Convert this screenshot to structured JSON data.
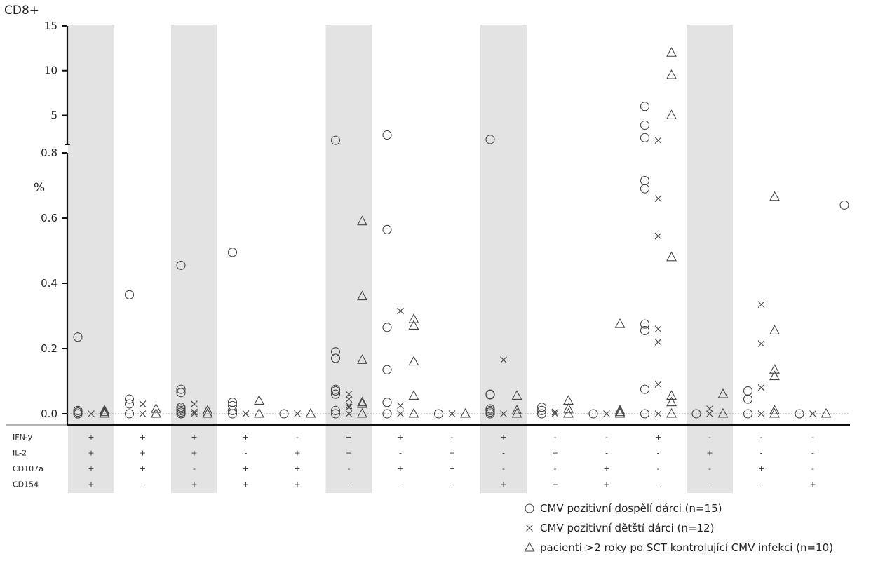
{
  "chart_data": {
    "type": "scatter",
    "title": "CD8+",
    "ylabel": "%",
    "y_axis_break": true,
    "ylim_lower": [
      0,
      0.8
    ],
    "ylim_upper": [
      0.8,
      15
    ],
    "upper_ticks": [
      "15",
      "10",
      "5"
    ],
    "lower_ticks": [
      "0.8",
      "0.6",
      "0.4",
      "0.2",
      "0.0"
    ],
    "upper_tick_values": [
      15,
      10,
      5
    ],
    "lower_tick_values": [
      0.8,
      0.6,
      0.4,
      0.2,
      0.0
    ],
    "shaded_groups": [
      1,
      3,
      6,
      9,
      13
    ],
    "row_labels": [
      "IFN-y",
      "IL-2",
      "CD107a",
      "CD154"
    ],
    "groups": [
      {
        "id": 1,
        "IFN-y": "+",
        "IL-2": "+",
        "CD107a": "+",
        "CD154": "+"
      },
      {
        "id": 2,
        "IFN-y": "+",
        "IL-2": "+",
        "CD107a": "+",
        "CD154": "-"
      },
      {
        "id": 3,
        "IFN-y": "+",
        "IL-2": "+",
        "CD107a": "-",
        "CD154": "+"
      },
      {
        "id": 4,
        "IFN-y": "+",
        "IL-2": "-",
        "CD107a": "+",
        "CD154": "+"
      },
      {
        "id": 5,
        "IFN-y": "-",
        "IL-2": "+",
        "CD107a": "+",
        "CD154": "+"
      },
      {
        "id": 6,
        "IFN-y": "+",
        "IL-2": "+",
        "CD107a": "-",
        "CD154": "-"
      },
      {
        "id": 7,
        "IFN-y": "+",
        "IL-2": "-",
        "CD107a": "+",
        "CD154": "-"
      },
      {
        "id": 8,
        "IFN-y": "-",
        "IL-2": "+",
        "CD107a": "+",
        "CD154": "-"
      },
      {
        "id": 9,
        "IFN-y": "+",
        "IL-2": "-",
        "CD107a": "-",
        "CD154": "+"
      },
      {
        "id": 10,
        "IFN-y": "-",
        "IL-2": "+",
        "CD107a": "-",
        "CD154": "+"
      },
      {
        "id": 11,
        "IFN-y": "-",
        "IL-2": "-",
        "CD107a": "+",
        "CD154": "+"
      },
      {
        "id": 12,
        "IFN-y": "+",
        "IL-2": "-",
        "CD107a": "-",
        "CD154": "-"
      },
      {
        "id": 13,
        "IFN-y": "-",
        "IL-2": "+",
        "CD107a": "-",
        "CD154": "-"
      },
      {
        "id": 14,
        "IFN-y": "-",
        "IL-2": "-",
        "CD107a": "+",
        "CD154": "-"
      },
      {
        "id": 15,
        "IFN-y": "-",
        "IL-2": "-",
        "CD107a": "-",
        "CD154": "+"
      }
    ],
    "series": [
      {
        "name": "CMV pozitivní dospělí dárci (n=15)",
        "marker": "circle",
        "points": [
          {
            "group": 1,
            "values": [
              0.235,
              0.01,
              0.005,
              0.0,
              0.0
            ]
          },
          {
            "group": 2,
            "values": [
              0.365,
              0.045,
              0.03,
              0.0
            ]
          },
          {
            "group": 3,
            "values": [
              0.455,
              0.075,
              0.065,
              0.02,
              0.015,
              0.01,
              0.005,
              0.0,
              0.0
            ]
          },
          {
            "group": 4,
            "values": [
              0.495,
              0.035,
              0.025,
              0.01,
              0.0
            ]
          },
          {
            "group": 5,
            "values": [
              0.0
            ]
          },
          {
            "group": 6,
            "values": [
              2.2,
              0.19,
              0.17,
              0.075,
              0.07,
              0.06,
              0.01,
              0.0
            ]
          },
          {
            "group": 7,
            "values": [
              2.8,
              0.565,
              0.265,
              0.135,
              0.035,
              0.0
            ]
          },
          {
            "group": 8,
            "values": [
              0.0
            ]
          },
          {
            "group": 9,
            "values": [
              2.3,
              0.06,
              0.058,
              0.015,
              0.01,
              0.005,
              0.0
            ]
          },
          {
            "group": 10,
            "values": [
              0.02,
              0.01,
              0.0
            ]
          },
          {
            "group": 11,
            "values": [
              0.0
            ]
          },
          {
            "group": 12,
            "values": [
              6.0,
              3.9,
              2.5,
              0.715,
              0.69,
              0.275,
              0.255,
              0.075,
              0.0
            ]
          },
          {
            "group": 13,
            "values": [
              0.0
            ]
          },
          {
            "group": 14,
            "values": [
              0.07,
              0.045,
              0.0
            ]
          },
          {
            "group": 15,
            "values": [
              0.0,
              0.64
            ]
          }
        ]
      },
      {
        "name": "CMV pozitivní dětští dárci (n=12)",
        "marker": "x",
        "points": [
          {
            "group": 1,
            "values": [
              0.0
            ]
          },
          {
            "group": 2,
            "values": [
              0.03,
              0.0
            ]
          },
          {
            "group": 3,
            "values": [
              0.03,
              0.005,
              0.0
            ]
          },
          {
            "group": 4,
            "values": [
              0.0,
              0.0
            ]
          },
          {
            "group": 5,
            "values": [
              0.0
            ]
          },
          {
            "group": 6,
            "values": [
              0.06,
              0.045,
              0.025,
              0.02,
              0.0
            ]
          },
          {
            "group": 7,
            "values": [
              0.315,
              0.025,
              0.0
            ]
          },
          {
            "group": 8,
            "values": [
              0.0
            ]
          },
          {
            "group": 9,
            "values": [
              0.165,
              0.0
            ]
          },
          {
            "group": 10,
            "values": [
              0.005,
              0.0
            ]
          },
          {
            "group": 11,
            "values": [
              0.0
            ]
          },
          {
            "group": 12,
            "values": [
              2.2,
              0.66,
              0.545,
              0.26,
              0.22,
              0.09,
              0.0
            ]
          },
          {
            "group": 13,
            "values": [
              0.015,
              0.0
            ]
          },
          {
            "group": 14,
            "values": [
              0.335,
              0.215,
              0.08,
              0.0
            ]
          },
          {
            "group": 15,
            "values": [
              0.0
            ]
          }
        ]
      },
      {
        "name": "pacienti >2 roky po SCT kontrolující CMV infekci (n=10)",
        "marker": "triangle",
        "points": [
          {
            "group": 1,
            "values": [
              0.01,
              0.005,
              0.0,
              0.0
            ]
          },
          {
            "group": 2,
            "values": [
              0.015,
              0.0
            ]
          },
          {
            "group": 3,
            "values": [
              0.01,
              0.0,
              0.0
            ]
          },
          {
            "group": 4,
            "values": [
              0.04,
              0.0
            ]
          },
          {
            "group": 5,
            "values": [
              0.0
            ]
          },
          {
            "group": 6,
            "values": [
              0.59,
              0.36,
              0.165,
              0.035,
              0.03,
              0.0
            ]
          },
          {
            "group": 7,
            "values": [
              0.29,
              0.27,
              0.16,
              0.055,
              0.0
            ]
          },
          {
            "group": 8,
            "values": [
              0.0
            ]
          },
          {
            "group": 9,
            "values": [
              0.055,
              0.01,
              0.0
            ]
          },
          {
            "group": 10,
            "values": [
              0.04,
              0.015,
              0.0
            ]
          },
          {
            "group": 11,
            "values": [
              0.275,
              0.01,
              0.005,
              0.0
            ]
          },
          {
            "group": 12,
            "values": [
              12.0,
              9.5,
              5.0,
              0.48,
              0.055,
              0.035,
              0.0
            ]
          },
          {
            "group": 13,
            "values": [
              0.06,
              0.0
            ]
          },
          {
            "group": 14,
            "values": [
              0.665,
              0.255,
              0.135,
              0.115,
              0.01,
              0.0
            ]
          },
          {
            "group": 15,
            "values": [
              0.0
            ]
          }
        ]
      }
    ],
    "legend_position": "bottom-right",
    "grid": false
  }
}
